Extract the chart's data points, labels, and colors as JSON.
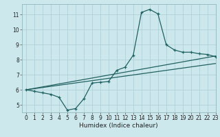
{
  "title": "",
  "xlabel": "Humidex (Indice chaleur)",
  "xlim": [
    -0.5,
    23
  ],
  "ylim": [
    4.5,
    11.7
  ],
  "xticks": [
    0,
    1,
    2,
    3,
    4,
    5,
    6,
    7,
    8,
    9,
    10,
    11,
    12,
    13,
    14,
    15,
    16,
    17,
    18,
    19,
    20,
    21,
    22,
    23
  ],
  "yticks": [
    5,
    6,
    7,
    8,
    9,
    10,
    11
  ],
  "bg_color": "#cde8ec",
  "line_color": "#206060",
  "grid_color": "#b0d0d8",
  "line1_x": [
    0,
    1,
    2,
    3,
    4,
    5,
    6,
    7,
    8,
    9,
    10,
    11,
    12,
    13,
    14,
    15,
    16,
    17,
    18,
    19,
    20,
    21,
    22,
    23
  ],
  "line1_y": [
    6.0,
    5.9,
    5.8,
    5.7,
    5.5,
    4.65,
    4.75,
    5.4,
    6.45,
    6.5,
    6.55,
    7.3,
    7.5,
    8.3,
    11.15,
    11.35,
    11.05,
    9.0,
    8.65,
    8.5,
    8.5,
    8.4,
    8.35,
    8.2
  ],
  "line2_x": [
    0,
    23
  ],
  "line2_y": [
    6.0,
    8.25
  ],
  "line3_x": [
    0,
    23
  ],
  "line3_y": [
    6.0,
    7.75
  ],
  "xlabel_fontsize": 6.5,
  "tick_fontsize": 5.5
}
